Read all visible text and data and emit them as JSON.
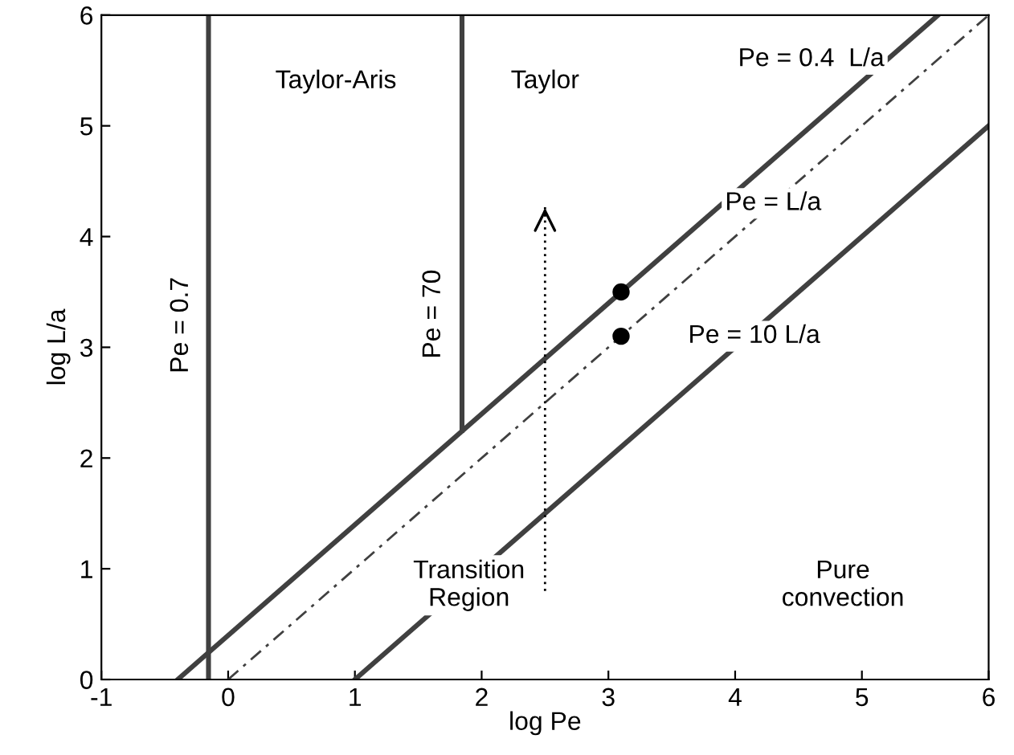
{
  "chart_data": {
    "type": "line",
    "xlabel": "log Pe",
    "ylabel": "log L/a",
    "xlim": [
      -1,
      6
    ],
    "ylim": [
      0,
      6
    ],
    "xticks": [
      -1,
      0,
      1,
      2,
      3,
      4,
      5,
      6
    ],
    "yticks": [
      0,
      1,
      2,
      3,
      4,
      5,
      6
    ],
    "grid": false,
    "legend": false,
    "series": [
      {
        "name": "Pe = 0.4  L/a",
        "color": "#404040",
        "x": [
          -0.398,
          5.602
        ],
        "values": [
          0,
          6
        ],
        "line_style": "solid",
        "marker": "none"
      },
      {
        "name": "Pe = L/a",
        "color": "#404040",
        "x": [
          0,
          6
        ],
        "values": [
          0,
          6
        ],
        "line_style": "dashed",
        "marker": "none"
      },
      {
        "name": "Pe = 10 L/a",
        "color": "#404040",
        "x": [
          1,
          6
        ],
        "values": [
          0,
          5
        ],
        "line_style": "solid",
        "marker": "none"
      },
      {
        "name": "Pe = 70",
        "color": "#404040",
        "x": [
          1.845,
          1.845
        ],
        "values": [
          2.25,
          6
        ],
        "line_style": "solid",
        "marker": "none"
      },
      {
        "name": "Pe = 0.7",
        "color": "#404040",
        "x": [
          -0.155,
          -0.155
        ],
        "values": [
          0,
          6
        ],
        "line_style": "solid",
        "marker": "none"
      },
      {
        "color": "#000000",
        "x": [
          2.5,
          2.5
        ],
        "values": [
          0.8,
          4.3
        ],
        "line_style": "dotted",
        "marker": "none"
      },
      {
        "type": "scatter",
        "color": "#000000",
        "x": [
          3.1,
          3.1
        ],
        "values": [
          3.5,
          3.1
        ],
        "marker": "circle"
      }
    ],
    "annotations": [
      "Taylor-Aris",
      "Taylor",
      "Transition\nRegion",
      "Pure\nconvection"
    ]
  }
}
